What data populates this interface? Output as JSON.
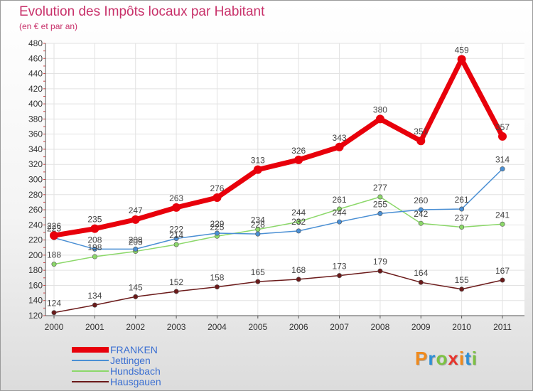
{
  "chart_data": {
    "type": "line",
    "title": "Evolution des Impôts locaux par Habitant",
    "subtitle": "(en € et par an)",
    "x": [
      "2000",
      "2001",
      "2002",
      "2003",
      "2004",
      "2005",
      "2006",
      "2007",
      "2008",
      "2009",
      "2010",
      "2011"
    ],
    "ylim": [
      120,
      480
    ],
    "yticks": [
      120,
      140,
      160,
      180,
      200,
      220,
      240,
      260,
      280,
      300,
      320,
      340,
      360,
      380,
      400,
      420,
      440,
      460,
      480
    ],
    "grid": true,
    "legend_position": "bottom-left",
    "series": [
      {
        "name": "FRANKEN",
        "color": "#e8000b",
        "values": [
          226,
          235,
          247,
          263,
          276,
          313,
          326,
          343,
          380,
          351,
          459,
          357
        ]
      },
      {
        "name": "Jettingen",
        "color": "#4a8fd4",
        "values": [
          223,
          208,
          208,
          222,
          229,
          228,
          232,
          244,
          255,
          260,
          261,
          314
        ]
      },
      {
        "name": "Hundsbach",
        "color": "#8cd86a",
        "values": [
          188,
          198,
          205,
          214,
          225,
          234,
          244,
          261,
          277,
          242,
          237,
          241
        ]
      },
      {
        "name": "Hausgauen",
        "color": "#6b1a1a",
        "values": [
          124,
          134,
          145,
          152,
          158,
          165,
          168,
          173,
          179,
          164,
          155,
          167
        ]
      }
    ]
  },
  "branding": {
    "logo_text": "Proxiti",
    "logo_colors": [
      "#f08a1c",
      "#2d8fd6",
      "#7cc242",
      "#e8342c",
      "#f08a1c",
      "#2d8fd6",
      "#7cc242"
    ]
  }
}
